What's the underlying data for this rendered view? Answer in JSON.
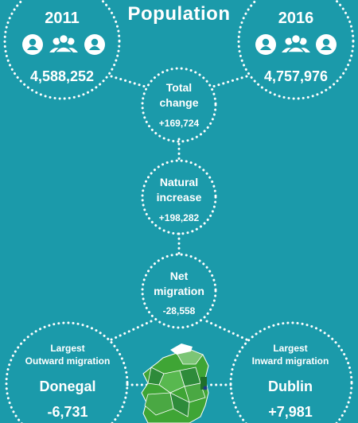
{
  "title": "Population",
  "census_2011": {
    "year": "2011",
    "population": "4,588,252"
  },
  "census_2016": {
    "year": "2016",
    "population": "4,757,976"
  },
  "total_change": {
    "label_line1": "Total",
    "label_line2": "change",
    "value": "+169,724"
  },
  "natural_increase": {
    "label_line1": "Natural",
    "label_line2": "increase",
    "value": "+198,282"
  },
  "net_migration": {
    "label_line1": "Net",
    "label_line2": "migration",
    "value": "-28,558"
  },
  "largest_outward": {
    "label_line1": "Largest",
    "label_line2": "Outward migration",
    "county": "Donegal",
    "value": "-6,731"
  },
  "largest_inward": {
    "label_line1": "Largest",
    "label_line2": "Inward migration",
    "county": "Dublin",
    "value": "+7,981"
  },
  "icons": [
    "person-icon",
    "group-icon",
    "person-icon"
  ],
  "colors": {
    "background": "#1b9aaa",
    "text": "#ffffff",
    "map_green": "#3fa535",
    "map_dark": "#1f6f2a"
  }
}
